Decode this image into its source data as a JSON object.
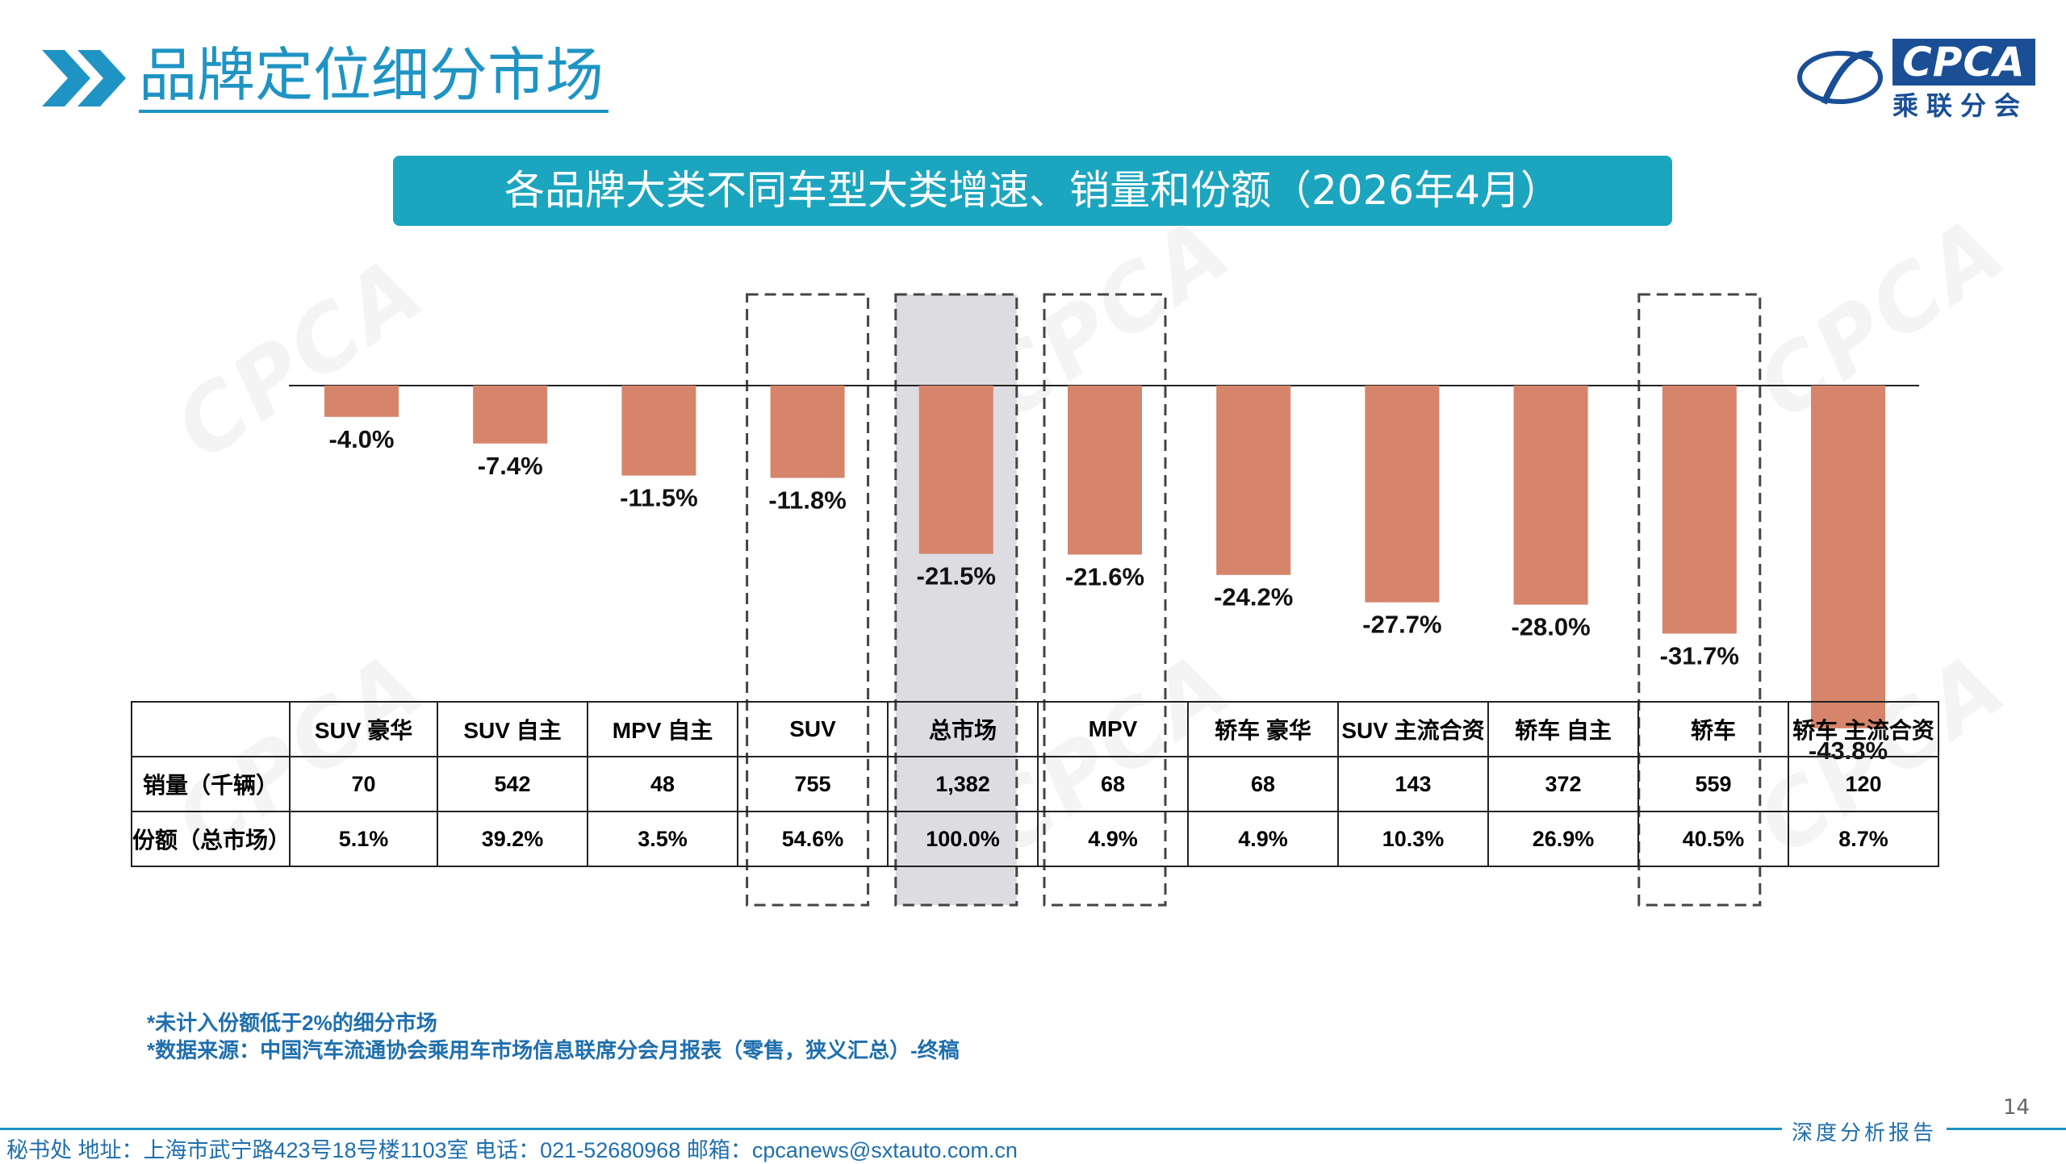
{
  "header": {
    "title": "品牌定位细分市场",
    "logo_text": "CPCA",
    "logo_sub": "乘联分会"
  },
  "banner": {
    "title": "各品牌大类不同车型大类增速、销量和份额（2026年4月）"
  },
  "chart_data": {
    "type": "bar",
    "categories": [
      "SUV 豪华",
      "SUV 自主",
      "MPV 自主",
      "SUV",
      "总市场",
      "MPV",
      "轿车 豪华",
      "SUV 主流合资",
      "轿车 自主",
      "轿车",
      "轿车 主流合资"
    ],
    "values": [
      -4.0,
      -7.4,
      -11.5,
      -11.8,
      -21.5,
      -21.6,
      -24.2,
      -27.7,
      -28.0,
      -31.7,
      -43.8
    ],
    "value_labels": [
      "-4.0%",
      "-7.4%",
      "-11.5%",
      "-11.8%",
      "-21.5%",
      "-21.6%",
      "-24.2%",
      "-27.7%",
      "-28.0%",
      "-31.7%",
      "-43.8%"
    ],
    "ylim": [
      -50,
      0
    ],
    "bar_color": "#d6856a",
    "highlight_boxes": [
      "SUV",
      "总市场",
      "MPV",
      "轿车"
    ],
    "shaded": "总市场"
  },
  "table": {
    "rows": [
      {
        "label": "销量（千辆）",
        "values": [
          "70",
          "542",
          "48",
          "755",
          "1,382",
          "68",
          "68",
          "143",
          "372",
          "559",
          "120"
        ]
      },
      {
        "label": "份额（总市场）",
        "values": [
          "5.1%",
          "39.2%",
          "3.5%",
          "54.6%",
          "100.0%",
          "4.9%",
          "4.9%",
          "10.3%",
          "26.9%",
          "40.5%",
          "8.7%"
        ]
      }
    ]
  },
  "notes": [
    "*未计入份额低于2%的细分市场",
    "*数据来源：中国汽车流通协会乘用车市场信息联席分会月报表（零售，狭义汇总）-终稿"
  ],
  "page_number": "14",
  "report_tag": "深度分析报告",
  "footer": "秘书处   地址：上海市武宁路423号18号楼1103室   电话：021-52680968   邮箱：cpcanews@sxtauto.com.cn",
  "colors": {
    "accent": "#1f94c4",
    "banner": "#1ca5bf",
    "bar": "#d6856a",
    "shade": "#dcdce1"
  }
}
